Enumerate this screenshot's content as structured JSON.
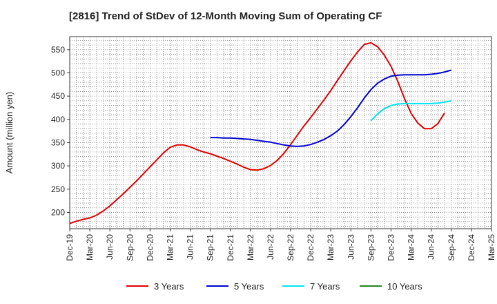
{
  "chart_data": {
    "type": "line",
    "title": "[2816]  Trend of StDev of 12-Month Moving Sum of Operating CF",
    "ylabel": "Amount (million yen)",
    "xlabel": "",
    "x_ticks": [
      "Dec-19",
      "Mar-20",
      "Jun-20",
      "Sep-20",
      "Dec-20",
      "Mar-21",
      "Jun-21",
      "Sep-21",
      "Dec-21",
      "Mar-22",
      "Jun-22",
      "Sep-22",
      "Dec-22",
      "Mar-23",
      "Jun-23",
      "Sep-23",
      "Dec-23",
      "Mar-24",
      "Jun-24",
      "Sep-24",
      "Dec-24",
      "Mar-25"
    ],
    "y_ticks": [
      200,
      250,
      300,
      350,
      400,
      450,
      500,
      550
    ],
    "ylim": [
      165,
      578
    ],
    "grid": true,
    "legend_position": "bottom",
    "series": [
      {
        "name": "3 Years",
        "color": "#dd0000",
        "x": [
          "Dec-19",
          "Jan-20",
          "Feb-20",
          "Mar-20",
          "Apr-20",
          "May-20",
          "Jun-20",
          "Jul-20",
          "Aug-20",
          "Sep-20",
          "Oct-20",
          "Nov-20",
          "Dec-20",
          "Jan-21",
          "Feb-21",
          "Mar-21",
          "Apr-21",
          "May-21",
          "Jun-21",
          "Jul-21",
          "Aug-21",
          "Sep-21",
          "Oct-21",
          "Nov-21",
          "Dec-21",
          "Jan-22",
          "Feb-22",
          "Mar-22",
          "Apr-22",
          "May-22",
          "Jun-22",
          "Jul-22",
          "Aug-22",
          "Sep-22",
          "Oct-22",
          "Nov-22",
          "Dec-22",
          "Jan-23",
          "Feb-23",
          "Mar-23",
          "Apr-23",
          "May-23",
          "Jun-23",
          "Jul-23",
          "Aug-23",
          "Sep-23",
          "Oct-23",
          "Nov-23",
          "Dec-23",
          "Jan-24",
          "Feb-24",
          "Mar-24",
          "Apr-24",
          "May-24",
          "Jun-24",
          "Jul-24",
          "Aug-24",
          "Sep-24"
        ],
        "values": [
          176,
          181,
          185,
          188,
          194,
          203,
          214,
          227,
          240,
          254,
          268,
          283,
          298,
          313,
          328,
          340,
          345,
          345,
          341,
          335,
          330,
          326,
          321,
          316,
          310,
          304,
          297,
          292,
          291,
          294,
          301,
          312,
          327,
          346,
          366,
          386,
          404,
          423,
          442,
          462,
          484,
          505,
          526,
          545,
          561,
          565,
          556,
          538,
          514,
          482,
          445,
          413,
          392,
          380,
          380,
          391,
          414,
          null
        ]
      },
      {
        "name": "5 Years",
        "color": "#0000cc",
        "x": [
          "Sep-21",
          "Oct-21",
          "Nov-21",
          "Dec-21",
          "Jan-22",
          "Feb-22",
          "Mar-22",
          "Apr-22",
          "May-22",
          "Jun-22",
          "Jul-22",
          "Aug-22",
          "Sep-22",
          "Oct-22",
          "Nov-22",
          "Dec-22",
          "Jan-23",
          "Feb-23",
          "Mar-23",
          "Apr-23",
          "May-23",
          "Jun-23",
          "Jul-23",
          "Aug-23",
          "Sep-23",
          "Oct-23",
          "Nov-23",
          "Dec-23",
          "Jan-24",
          "Feb-24",
          "Mar-24",
          "Apr-24",
          "May-24",
          "Jun-24",
          "Jul-24",
          "Aug-24",
          "Sep-24"
        ],
        "values": [
          361,
          361,
          360,
          360,
          359,
          358,
          357,
          355,
          353,
          351,
          348,
          345,
          343,
          342,
          343,
          346,
          351,
          357,
          365,
          375,
          389,
          406,
          425,
          446,
          464,
          478,
          487,
          493,
          495,
          496,
          496,
          496,
          496,
          497,
          499,
          502,
          506
        ]
      },
      {
        "name": "7 Years",
        "color": "#00e5ee",
        "x": [
          "Sep-23",
          "Oct-23",
          "Nov-23",
          "Dec-23",
          "Jan-24",
          "Feb-24",
          "Mar-24",
          "Apr-24",
          "May-24",
          "Jun-24",
          "Jul-24",
          "Aug-24",
          "Sep-24"
        ],
        "values": [
          397,
          412,
          423,
          430,
          433,
          434,
          434,
          434,
          434,
          434,
          435,
          437,
          440
        ]
      },
      {
        "name": "10 Years",
        "color": "#228822",
        "x": [],
        "values": []
      }
    ]
  }
}
